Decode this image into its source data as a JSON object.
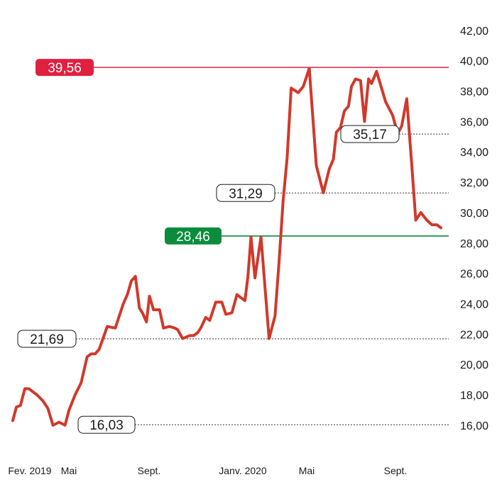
{
  "chart_data": {
    "type": "line",
    "title": "",
    "xlabel": "",
    "ylabel": "",
    "ylim": [
      15.2,
      42.6
    ],
    "grid": false,
    "colors": {
      "line": "#d0392b",
      "max": "#e0203f",
      "mid": "#0a8c3c",
      "label_text": "#1a1a1a",
      "ref_line": "#333333"
    },
    "y_ticks": [
      "16,00",
      "18,00",
      "20,00",
      "22,00",
      "24,00",
      "26,00",
      "28,00",
      "30,00",
      "32,00",
      "34,00",
      "36,00",
      "38,00",
      "40,00",
      "42,00"
    ],
    "y_tick_values": [
      16,
      18,
      20,
      22,
      24,
      26,
      28,
      30,
      32,
      34,
      36,
      38,
      40,
      42
    ],
    "x_ticks": [
      {
        "label": "Fev. 2019",
        "month": 0
      },
      {
        "label": "Mai",
        "month": 3
      },
      {
        "label": "Sept.",
        "month": 7
      },
      {
        "label": "Janv. 2020",
        "month": 11
      },
      {
        "label": "Mai",
        "month": 15
      },
      {
        "label": "Sept.",
        "month": 19
      }
    ],
    "x_range": [
      0,
      21.6
    ],
    "series": [
      {
        "name": "",
        "x": [
          0,
          0.18,
          0.38,
          0.6,
          0.8,
          1.2,
          1.5,
          1.75,
          2.0,
          2.3,
          2.6,
          2.8,
          3.1,
          3.4,
          3.7,
          3.9,
          4.1,
          4.3,
          4.7,
          5.1,
          5.5,
          5.7,
          5.9,
          6.1,
          6.3,
          6.45,
          6.65,
          6.8,
          7.0,
          7.3,
          7.5,
          7.8,
          8.05,
          8.2,
          8.45,
          8.8,
          9.0,
          9.2,
          9.35,
          9.6,
          9.8,
          10.1,
          10.4,
          10.6,
          10.9,
          11.15,
          11.35,
          11.55,
          11.7,
          11.85,
          12.05,
          12.35,
          12.75,
          13.05,
          13.25,
          13.45,
          13.65,
          13.85,
          14.2,
          14.45,
          14.75,
          15.1,
          15.45,
          15.75,
          15.95,
          16.1,
          16.3,
          16.5,
          16.7,
          16.85,
          17.05,
          17.3,
          17.5,
          17.7,
          17.85,
          18.1,
          18.3,
          18.55,
          18.9,
          19.15,
          19.35,
          19.6,
          19.85,
          20.05,
          20.3,
          20.6,
          20.85,
          21.1,
          21.3
        ],
        "values": [
          16.3,
          17.2,
          17.3,
          18.4,
          18.4,
          18.0,
          17.6,
          17.1,
          16.0,
          16.2,
          16.0,
          17.0,
          18.0,
          18.8,
          20.5,
          20.7,
          20.7,
          21.0,
          22.5,
          22.4,
          24.0,
          24.6,
          25.5,
          25.8,
          23.7,
          23.4,
          22.8,
          24.5,
          23.6,
          23.6,
          22.4,
          22.5,
          22.4,
          22.3,
          21.7,
          21.9,
          21.9,
          22.1,
          22.4,
          23.1,
          22.9,
          24.1,
          24.1,
          23.3,
          23.4,
          24.6,
          24.4,
          24.2,
          25.8,
          28.4,
          25.7,
          28.4,
          21.7,
          23.2,
          26.8,
          30.8,
          33.6,
          38.2,
          37.9,
          38.3,
          39.5,
          33.1,
          31.3,
          32.9,
          33.5,
          35.3,
          35.6,
          36.7,
          37.0,
          38.3,
          38.8,
          38.7,
          36.0,
          38.8,
          38.5,
          39.3,
          38.4,
          37.3,
          36.4,
          35.2,
          35.7,
          37.5,
          33.1,
          29.5,
          30.0,
          29.5,
          29.2,
          29.2,
          29.0
        ]
      }
    ],
    "reference_lines": [
      {
        "value": 39.56,
        "label": "39,56",
        "style": "max"
      },
      {
        "value": 28.46,
        "label": "28,46",
        "style": "mid"
      },
      {
        "value": 35.17,
        "label": "35,17",
        "style": "dotted"
      },
      {
        "value": 31.29,
        "label": "31,29",
        "style": "dotted"
      },
      {
        "value": 21.69,
        "label": "21,69",
        "style": "dotted"
      },
      {
        "value": 16.03,
        "label": "16,03",
        "style": "dotted"
      }
    ]
  }
}
